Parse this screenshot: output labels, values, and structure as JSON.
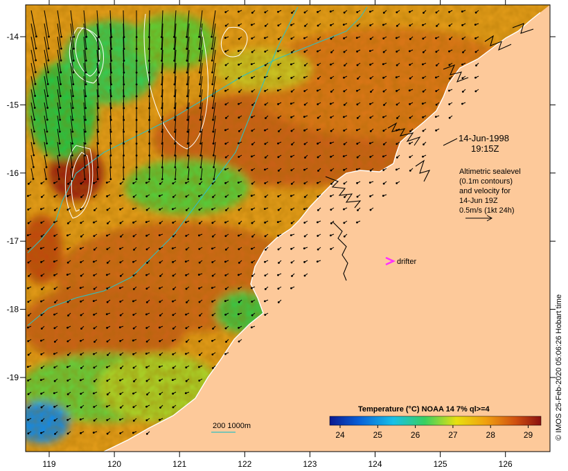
{
  "map": {
    "lon_ticks": [
      "119",
      "120",
      "121",
      "122",
      "123",
      "124",
      "125",
      "126"
    ],
    "lat_ticks": [
      "-14",
      "-15",
      "-16",
      "-17",
      "-18",
      "-19"
    ],
    "date": "14-Jun-1998",
    "time": "19:15Z",
    "info_lines": [
      "Altimetric sealevel",
      "(0.1m contours)",
      "and velocity for",
      "14-Jun 19Z",
      "0.5m/s (1kt 24h)"
    ],
    "drifter_label": "drifter",
    "bathymetry_label": "200  1000m",
    "colorbar": {
      "title": "Temperature (°C) NOAA 14 7% ql>=4",
      "ticks": [
        "24",
        "25",
        "26",
        "27",
        "28",
        "29"
      ],
      "colors": [
        "#0a1890",
        "#0860d8",
        "#18c0e8",
        "#38d060",
        "#e8e010",
        "#f0a010",
        "#d05010",
        "#8a1010"
      ]
    },
    "credit": "© IMOS 25-Feb-2020 05:06:26 Hobart time",
    "colors": {
      "land": "#fdc99a",
      "ocean_warm": "#d46e12",
      "ocean_mid": "#e8a410",
      "ocean_cool": "#40c040",
      "contour": "#ffffff",
      "bathymetry": "#30c0c0",
      "drifter": "#ff30ff"
    }
  }
}
